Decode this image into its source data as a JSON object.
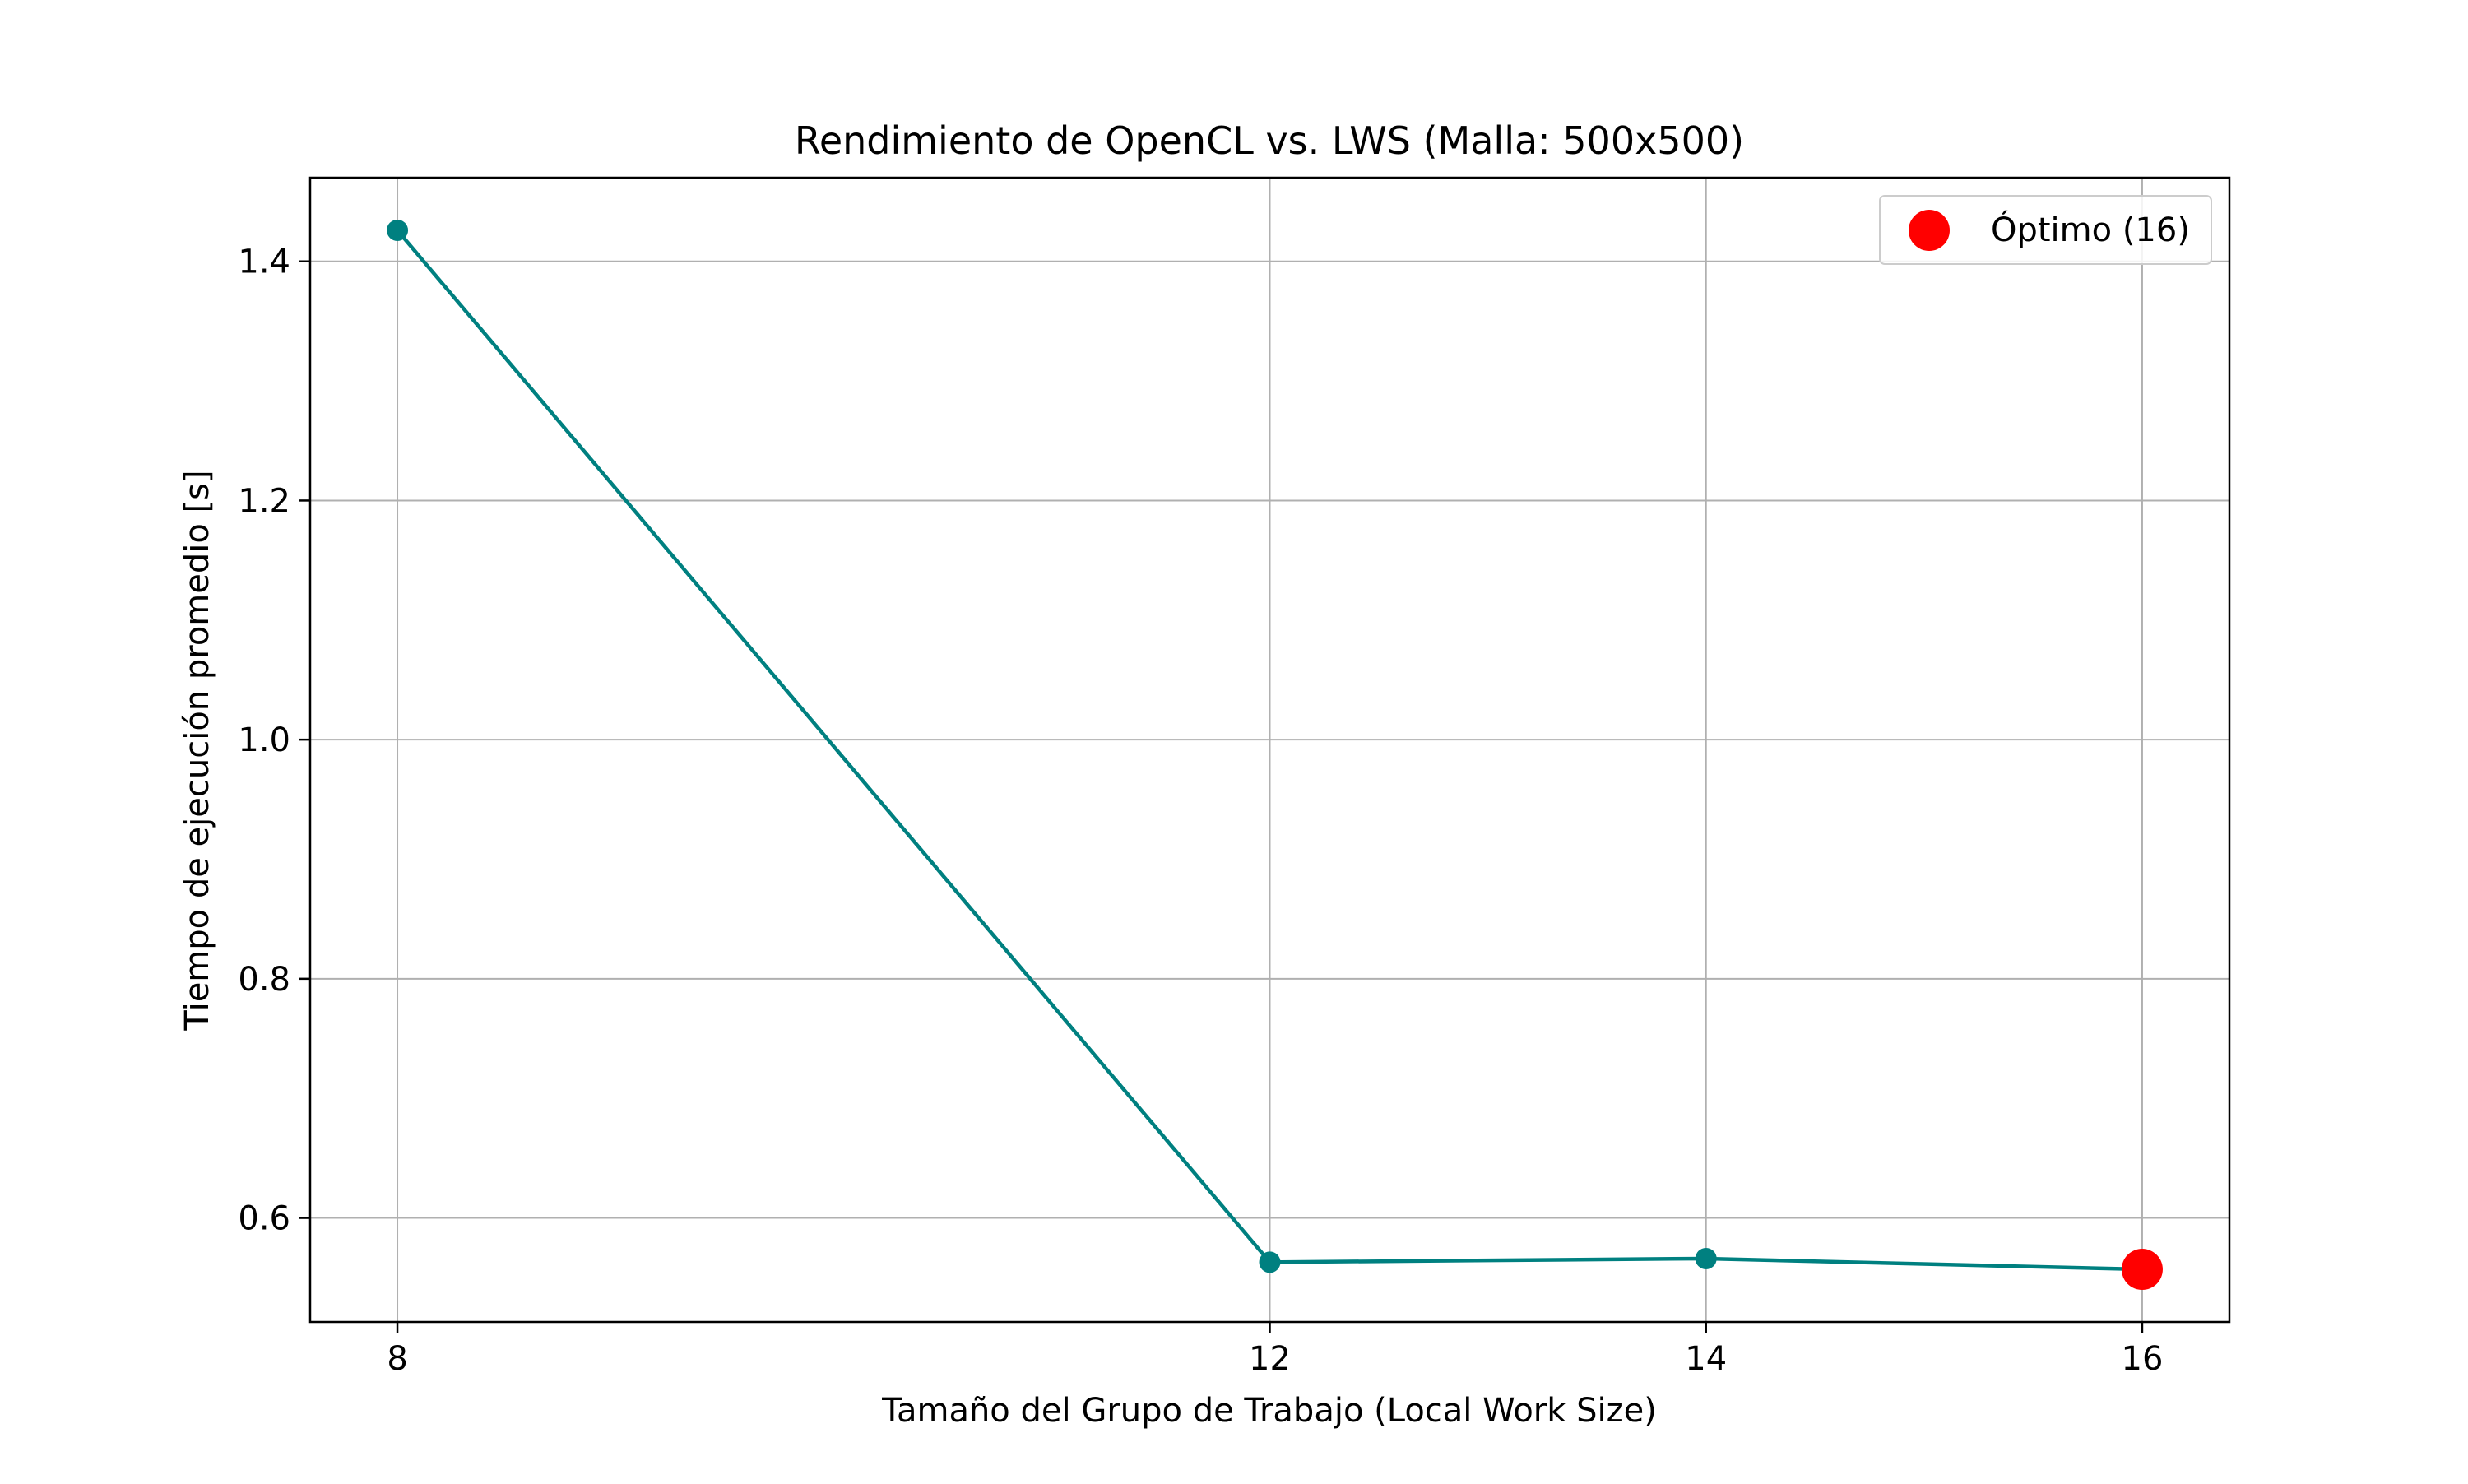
{
  "chart_data": {
    "type": "line",
    "title": "Rendimiento de OpenCL vs. LWS (Malla: 500x500)",
    "xlabel": "Tamaño del Grupo de Trabajo (Local Work Size)",
    "ylabel": "Tiempo de ejecución promedio [s]",
    "xlim": [
      7.6,
      16.4
    ],
    "ylim": [
      0.513,
      1.47
    ],
    "x_ticks": [
      8,
      12,
      14,
      16
    ],
    "x_tick_labels": [
      "8",
      "12",
      "14",
      "16"
    ],
    "y_ticks": [
      0.6,
      0.8,
      1.0,
      1.2,
      1.4
    ],
    "y_tick_labels": [
      "0.6",
      "0.8",
      "1.0",
      "1.2",
      "1.4"
    ],
    "grid": true,
    "series": [
      {
        "x": [
          8,
          12,
          14,
          16
        ],
        "values": [
          1.426,
          0.563,
          0.566,
          0.557
        ],
        "color": "#008080",
        "marker": "circle"
      }
    ],
    "highlight": {
      "x": 16,
      "y": 0.557,
      "name": "Óptimo (16)",
      "color": "#ff0000"
    },
    "legend": {
      "position": "top-right",
      "entries": [
        "Óptimo (16)"
      ]
    }
  }
}
